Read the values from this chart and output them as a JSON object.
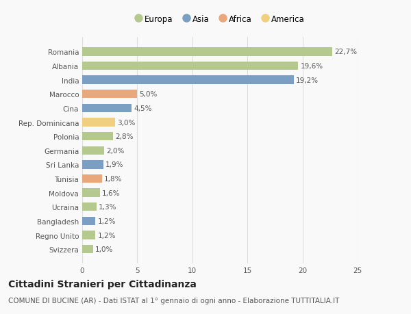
{
  "categories": [
    "Romania",
    "Albania",
    "India",
    "Marocco",
    "Cina",
    "Rep. Dominicana",
    "Polonia",
    "Germania",
    "Sri Lanka",
    "Tunisia",
    "Moldova",
    "Ucraina",
    "Bangladesh",
    "Regno Unito",
    "Svizzera"
  ],
  "values": [
    22.7,
    19.6,
    19.2,
    5.0,
    4.5,
    3.0,
    2.8,
    2.0,
    1.9,
    1.8,
    1.6,
    1.3,
    1.2,
    1.2,
    1.0
  ],
  "labels": [
    "22,7%",
    "19,6%",
    "19,2%",
    "5,0%",
    "4,5%",
    "3,0%",
    "2,8%",
    "2,0%",
    "1,9%",
    "1,8%",
    "1,6%",
    "1,3%",
    "1,2%",
    "1,2%",
    "1,0%"
  ],
  "continents": [
    "Europa",
    "Europa",
    "Asia",
    "Africa",
    "Asia",
    "America",
    "Europa",
    "Europa",
    "Asia",
    "Africa",
    "Europa",
    "Europa",
    "Asia",
    "Europa",
    "Europa"
  ],
  "colors": {
    "Europa": "#b5c98e",
    "Asia": "#7a9fc2",
    "Africa": "#e8a87c",
    "America": "#f0d080"
  },
  "legend_order": [
    "Europa",
    "Asia",
    "Africa",
    "America"
  ],
  "title": "Cittadini Stranieri per Cittadinanza",
  "subtitle": "COMUNE DI BUCINE (AR) - Dati ISTAT al 1° gennaio di ogni anno - Elaborazione TUTTITALIA.IT",
  "xlim": [
    0,
    25
  ],
  "xticks": [
    0,
    5,
    10,
    15,
    20,
    25
  ],
  "background_color": "#f9f9f9",
  "grid_color": "#dddddd",
  "title_fontsize": 10,
  "subtitle_fontsize": 7.5,
  "label_fontsize": 7.5,
  "tick_fontsize": 7.5,
  "legend_fontsize": 8.5
}
